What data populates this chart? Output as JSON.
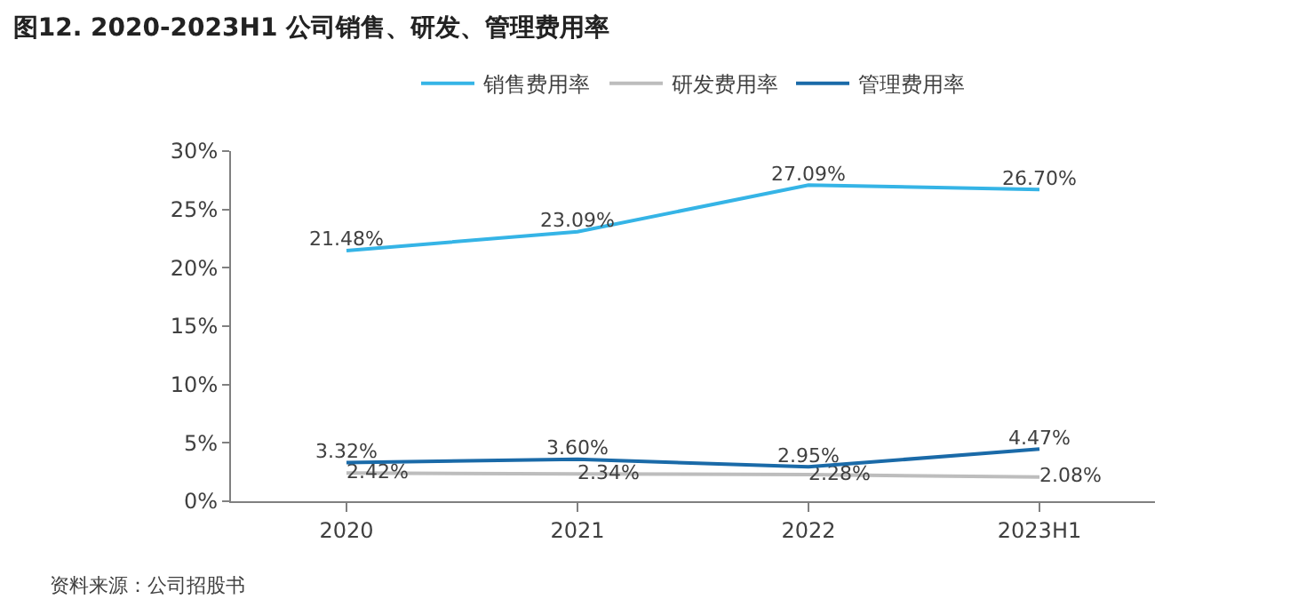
{
  "chart_data": {
    "type": "line",
    "title": "图12. 2020-2023H1 公司销售、研发、管理费用率",
    "categories": [
      "2020",
      "2021",
      "2022",
      "2023H1"
    ],
    "series": [
      {
        "name": "销售费用率",
        "color": "#35b4e6",
        "values": [
          21.48,
          23.09,
          27.09,
          26.7
        ],
        "value_labels": [
          "21.48%",
          "23.09%",
          "27.09%",
          "26.70%"
        ]
      },
      {
        "name": "研发费用率",
        "color": "#bdbdbd",
        "values": [
          2.42,
          2.34,
          2.28,
          2.08
        ],
        "value_labels": [
          "2.42%",
          "2.34%",
          "2.28%",
          "2.08%"
        ]
      },
      {
        "name": "管理费用率",
        "color": "#1a6aa8",
        "values": [
          3.32,
          3.6,
          2.95,
          4.47
        ],
        "value_labels": [
          "3.32%",
          "3.60%",
          "2.95%",
          "4.47%"
        ]
      }
    ],
    "ylim": [
      0,
      30
    ],
    "yticks": [
      {
        "value": 0,
        "label": "0%"
      },
      {
        "value": 5,
        "label": "5%"
      },
      {
        "value": 10,
        "label": "10%"
      },
      {
        "value": 15,
        "label": "15%"
      },
      {
        "value": 20,
        "label": "20%"
      },
      {
        "value": 25,
        "label": "25%"
      },
      {
        "value": 30,
        "label": "30%"
      }
    ],
    "grid": false,
    "legend": "top",
    "marker": "none",
    "line_style": "solid",
    "annotations": [
      "资料来源：公司招股书"
    ]
  }
}
